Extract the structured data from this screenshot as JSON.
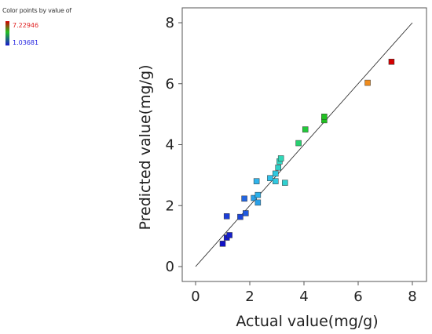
{
  "legend": {
    "title": "Color points by value of",
    "max_label": "7.22946",
    "min_label": "1.03681",
    "max_color": "#d40000",
    "mid_color": "#22c022",
    "min_color": "#1a1ad0"
  },
  "chart_data": {
    "type": "scatter",
    "xlabel": "Actual value(mg/g)",
    "ylabel": "Predicted value(mg/g)",
    "xlim": [
      0,
      8
    ],
    "ylim": [
      0,
      8
    ],
    "x_ticks": [
      "0",
      "2",
      "4",
      "6",
      "8"
    ],
    "y_ticks": [
      "0",
      "2",
      "4",
      "6",
      "8"
    ],
    "reference_line": {
      "from": [
        0,
        0
      ],
      "to": [
        8,
        8
      ]
    },
    "grid": false,
    "points": [
      {
        "x": 1.0,
        "y": 0.75,
        "color": "#1010c8"
      },
      {
        "x": 1.15,
        "y": 0.95,
        "color": "#1418cc"
      },
      {
        "x": 1.25,
        "y": 1.03,
        "color": "#1620cc"
      },
      {
        "x": 1.15,
        "y": 1.65,
        "color": "#1c3ed8"
      },
      {
        "x": 1.65,
        "y": 1.63,
        "color": "#1c46d8"
      },
      {
        "x": 1.85,
        "y": 1.75,
        "color": "#205ae0"
      },
      {
        "x": 1.8,
        "y": 2.23,
        "color": "#2466e0"
      },
      {
        "x": 2.15,
        "y": 2.25,
        "color": "#2aa0e8"
      },
      {
        "x": 2.3,
        "y": 2.1,
        "color": "#28a0e8"
      },
      {
        "x": 2.3,
        "y": 2.35,
        "color": "#2ab0ea"
      },
      {
        "x": 2.25,
        "y": 2.8,
        "color": "#2eb4ec"
      },
      {
        "x": 2.75,
        "y": 2.9,
        "color": "#30c0ea"
      },
      {
        "x": 2.95,
        "y": 3.05,
        "color": "#30c8e0"
      },
      {
        "x": 2.95,
        "y": 2.8,
        "color": "#30c8e0"
      },
      {
        "x": 3.3,
        "y": 2.75,
        "color": "#30d0d0"
      },
      {
        "x": 3.05,
        "y": 3.25,
        "color": "#30d0c8"
      },
      {
        "x": 3.1,
        "y": 3.45,
        "color": "#30d4c0"
      },
      {
        "x": 3.15,
        "y": 3.55,
        "color": "#30d8b8"
      },
      {
        "x": 3.8,
        "y": 4.05,
        "color": "#28d070"
      },
      {
        "x": 4.05,
        "y": 4.5,
        "color": "#22c83a"
      },
      {
        "x": 4.75,
        "y": 4.8,
        "color": "#20c020"
      },
      {
        "x": 4.75,
        "y": 4.92,
        "color": "#22c222"
      },
      {
        "x": 6.35,
        "y": 6.03,
        "color": "#f08c1c"
      },
      {
        "x": 7.23,
        "y": 6.72,
        "color": "#d40000"
      }
    ]
  }
}
